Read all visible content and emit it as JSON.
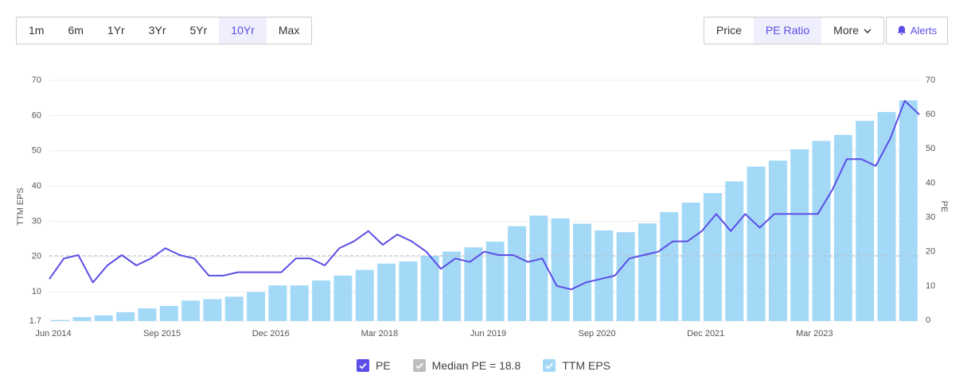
{
  "toolbar": {
    "ranges": [
      "1m",
      "6m",
      "1Yr",
      "3Yr",
      "5Yr",
      "10Yr",
      "Max"
    ],
    "active_range": 5,
    "views": [
      "Price",
      "PE Ratio",
      "More"
    ],
    "active_view": 1,
    "alerts": "Alerts"
  },
  "chart_data": {
    "type": "combo",
    "y_label": "TTM EPS",
    "y2_label": "PE",
    "xlim": [
      "Jun 2014",
      "Jun 2024"
    ],
    "xticks": [
      "Jun 2014",
      "Sep 2015",
      "Dec 2016",
      "Mar 2018",
      "Jun 2019",
      "Sep 2020",
      "Dec 2021",
      "Mar 2023"
    ],
    "ylim": [
      1.7,
      70
    ],
    "yticks": [
      1.7,
      10,
      20,
      30,
      40,
      50,
      60,
      70
    ],
    "y2lim": [
      0,
      70
    ],
    "y2ticks": [
      0,
      10,
      20,
      30,
      40,
      50,
      60,
      70
    ],
    "grid": true,
    "bars": {
      "name": "TTM EPS",
      "color": "#a3d9f7",
      "x": [
        "Jun 2014",
        "Sep 2014",
        "Dec 2014",
        "Mar 2015",
        "Jun 2015",
        "Sep 2015",
        "Dec 2015",
        "Mar 2016",
        "Jun 2016",
        "Sep 2016",
        "Dec 2016",
        "Mar 2017",
        "Jun 2017",
        "Sep 2017",
        "Dec 2017",
        "Mar 2018",
        "Jun 2018",
        "Sep 2018",
        "Dec 2018",
        "Mar 2019",
        "Jun 2019",
        "Sep 2019",
        "Dec 2019",
        "Mar 2020",
        "Jun 2020",
        "Sep 2020",
        "Dec 2020",
        "Mar 2021",
        "Jun 2021",
        "Sep 2021",
        "Dec 2021",
        "Mar 2022",
        "Jun 2022",
        "Sep 2022",
        "Dec 2022",
        "Mar 2023",
        "Jun 2023",
        "Sep 2023",
        "Dec 2023",
        "Mar 2024"
      ],
      "values": [
        2.0,
        2.8,
        3.3,
        4.2,
        5.3,
        6.0,
        7.5,
        7.9,
        8.6,
        9.9,
        11.8,
        11.8,
        13.2,
        14.6,
        16.2,
        18.0,
        18.6,
        20.2,
        21.4,
        22.6,
        24.2,
        28.6,
        31.6,
        30.8,
        29.3,
        27.4,
        26.9,
        29.4,
        32.6,
        35.3,
        38.0,
        41.3,
        45.5,
        47.2,
        50.4,
        52.8,
        54.5,
        58.5,
        61.0,
        64.3
      ]
    },
    "line": {
      "name": "PE",
      "color": "#5b4ee6",
      "axis": "y2",
      "x": [
        "Jun 2014",
        "Aug 2014",
        "Oct 2014",
        "Dec 2014",
        "Feb 2015",
        "Apr 2015",
        "Jun 2015",
        "Aug 2015",
        "Oct 2015",
        "Dec 2015",
        "Feb 2016",
        "Apr 2016",
        "Jun 2016",
        "Aug 2016",
        "Oct 2016",
        "Dec 2016",
        "Feb 2017",
        "Apr 2017",
        "Jun 2017",
        "Aug 2017",
        "Oct 2017",
        "Dec 2017",
        "Feb 2018",
        "Apr 2018",
        "Jun 2018",
        "Aug 2018",
        "Oct 2018",
        "Dec 2018",
        "Feb 2019",
        "Apr 2019",
        "Jun 2019",
        "Aug 2019",
        "Oct 2019",
        "Dec 2019",
        "Feb 2020",
        "Apr 2020",
        "Jun 2020",
        "Aug 2020",
        "Oct 2020",
        "Dec 2020",
        "Feb 2021",
        "Apr 2021",
        "Jun 2021",
        "Aug 2021",
        "Oct 2021",
        "Dec 2021",
        "Feb 2022",
        "Apr 2022",
        "Jun 2022",
        "Aug 2022",
        "Oct 2022",
        "Dec 2022",
        "Feb 2023",
        "Apr 2023",
        "Jun 2023",
        "Aug 2023",
        "Oct 2023",
        "Dec 2023",
        "Feb 2024",
        "Apr 2024",
        "Jun 2024"
      ],
      "values": [
        12,
        18,
        19,
        11,
        16,
        19,
        16,
        18,
        21,
        19,
        18,
        13,
        13,
        14,
        14,
        14,
        14,
        18,
        18,
        16,
        21,
        23,
        26,
        22,
        25,
        23,
        20,
        15,
        18,
        17,
        20,
        19,
        19,
        17,
        18,
        10,
        9,
        11,
        12,
        13,
        18,
        19,
        20,
        23,
        23,
        26,
        31,
        26,
        31,
        27,
        31,
        31,
        31,
        31,
        38,
        47,
        47,
        45,
        53,
        64,
        60
      ]
    },
    "median_line": {
      "name": "Median PE = 18.8",
      "value": 18.8,
      "color": "#bdbdbd",
      "axis": "y2"
    }
  }
}
